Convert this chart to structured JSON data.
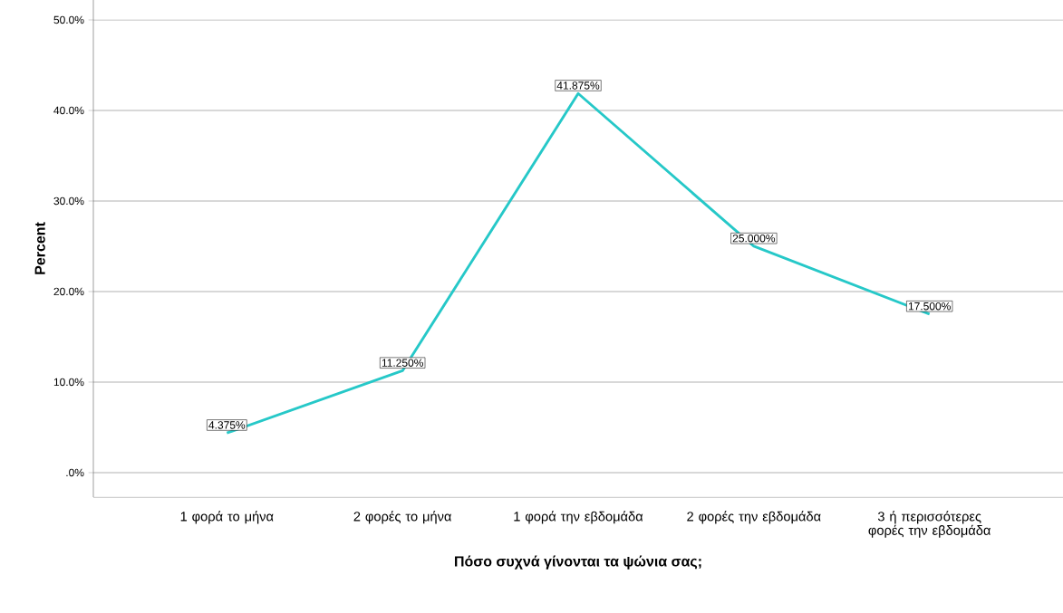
{
  "chart_data": {
    "type": "line",
    "xlabel": "Πόσο συχνά γίνονται τα ψώνια σας;",
    "ylabel": "Percent",
    "categories": [
      "1 φορά το μήνα",
      "2 φορές το μήνα",
      "1 φορά την εβδομάδα",
      "2 φορές την εβδομάδα",
      "3 ή περισσότερες φορές την εβδομάδα"
    ],
    "series": [
      {
        "color": "#26c8c8",
        "values": [
          4.375,
          11.25,
          41.875,
          25.0,
          17.5
        ],
        "value_labels": [
          "4.375%",
          "11.250%",
          "41.875%",
          "25.000%",
          "17.500%"
        ]
      }
    ],
    "ylim": [
      -2.7,
      52.2
    ],
    "yticks": [
      {
        "value": 0,
        "label": ".0%"
      },
      {
        "value": 10,
        "label": "10.0%"
      },
      {
        "value": 20,
        "label": "20.0%"
      },
      {
        "value": 30,
        "label": "30.0%"
      },
      {
        "value": 40,
        "label": "40.0%"
      },
      {
        "value": 50,
        "label": "50.0%"
      }
    ],
    "grid": "y",
    "marker": "none",
    "line_style": "solid"
  }
}
